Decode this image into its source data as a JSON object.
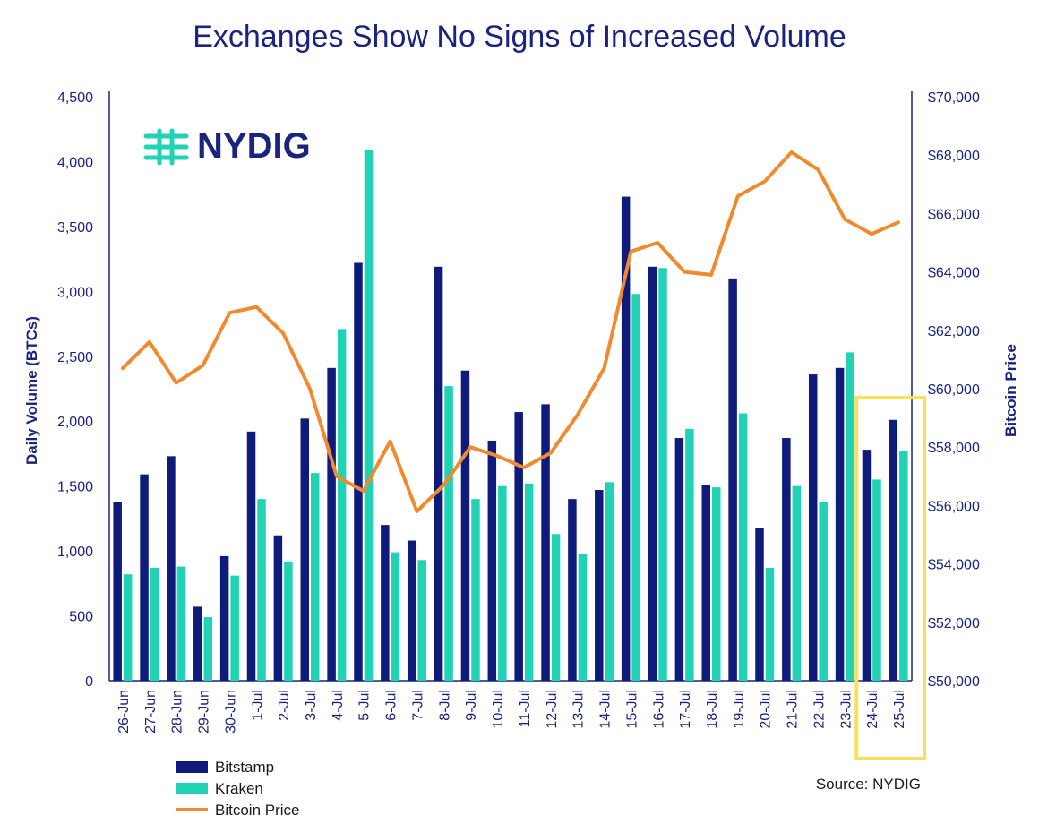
{
  "colors": {
    "bitstamp": "#0e1b7a",
    "kraken": "#21d3b4",
    "price": "#f08a2e",
    "axis": "#1a237e",
    "highlight": "#f7e15a",
    "title": "#1a237e"
  },
  "logo": {
    "text": "NYDIG",
    "icon": "nydig-logo-icon"
  },
  "source": "Source: NYDIG",
  "chart_data": {
    "type": "bar",
    "title": "Exchanges Show No Signs of Increased Volume",
    "ylabel": "Daily Volume (BTCs)",
    "y2label": "Bitcoin Price",
    "ylim": [
      0,
      4500
    ],
    "y2lim": [
      50000,
      70000
    ],
    "yticks": [
      0,
      500,
      1000,
      1500,
      2000,
      2500,
      3000,
      3500,
      4000,
      4500
    ],
    "yticklabels": [
      "0",
      "500",
      "1,000",
      "1,500",
      "2,000",
      "2,500",
      "3,000",
      "3,500",
      "4,000",
      "4,500"
    ],
    "y2ticks": [
      50000,
      52000,
      54000,
      56000,
      58000,
      60000,
      62000,
      64000,
      66000,
      68000,
      70000
    ],
    "y2ticklabels": [
      "$50,000",
      "$52,000",
      "$54,000",
      "$56,000",
      "$58,000",
      "$60,000",
      "$62,000",
      "$64,000",
      "$66,000",
      "$68,000",
      "$70,000"
    ],
    "categories": [
      "26-Jun",
      "27-Jun",
      "28-Jun",
      "29-Jun",
      "30-Jun",
      "1-Jul",
      "2-Jul",
      "3-Jul",
      "4-Jul",
      "5-Jul",
      "6-Jul",
      "7-Jul",
      "8-Jul",
      "9-Jul",
      "10-Jul",
      "11-Jul",
      "12-Jul",
      "13-Jul",
      "14-Jul",
      "15-Jul",
      "16-Jul",
      "17-Jul",
      "18-Jul",
      "19-Jul",
      "20-Jul",
      "21-Jul",
      "22-Jul",
      "23-Jul",
      "24-Jul",
      "25-Jul"
    ],
    "series": [
      {
        "name": "Bitstamp",
        "type": "bar",
        "axis": "left",
        "values": [
          1380,
          1590,
          1730,
          570,
          960,
          1920,
          1120,
          2020,
          2410,
          3220,
          1200,
          1080,
          3190,
          2390,
          1850,
          2070,
          2130,
          1400,
          1470,
          3730,
          3190,
          1870,
          1510,
          3100,
          1180,
          1870,
          2360,
          2410,
          1780,
          2010
        ]
      },
      {
        "name": "Kraken",
        "type": "bar",
        "axis": "left",
        "values": [
          820,
          870,
          880,
          490,
          810,
          1400,
          920,
          1600,
          2710,
          4090,
          990,
          930,
          2270,
          1400,
          1500,
          1520,
          1130,
          980,
          1530,
          2980,
          3180,
          1940,
          1490,
          2060,
          870,
          1500,
          1380,
          2530,
          1550,
          1770
        ]
      },
      {
        "name": "Bitcoin Price",
        "type": "line",
        "axis": "right",
        "values": [
          60700,
          61600,
          60200,
          60800,
          62600,
          62800,
          61900,
          60000,
          57000,
          56500,
          58200,
          55800,
          56700,
          58000,
          57700,
          57300,
          57800,
          59100,
          60700,
          64700,
          65000,
          64000,
          63900,
          66600,
          67100,
          68100,
          67500,
          65800,
          65300,
          65700
        ]
      }
    ],
    "highlight": {
      "from": "24-Jul",
      "to": "25-Jul"
    },
    "legend": {
      "placement": "bottom-left"
    },
    "grid": false
  }
}
